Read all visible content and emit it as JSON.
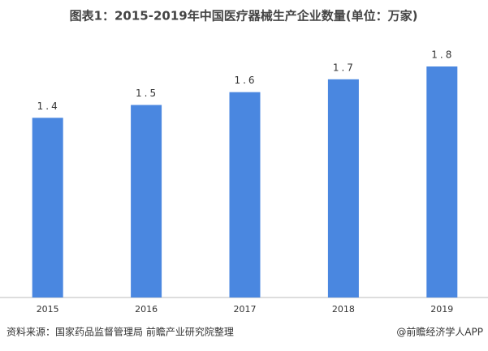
{
  "chart_data": {
    "type": "bar",
    "title": "图表1：2015-2019年中国医疗器械生产企业数量(单位：万家)",
    "categories": [
      "2015",
      "2016",
      "2017",
      "2018",
      "2019"
    ],
    "values": [
      1.4,
      1.5,
      1.6,
      1.7,
      1.8
    ],
    "color": "#4a87e0",
    "source": "资料来源：国家药品监督管理局 前瞻产业研究院整理",
    "credit": "@前瞻经济学人APP"
  }
}
